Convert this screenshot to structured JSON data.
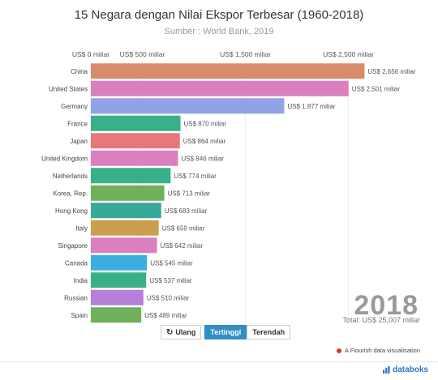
{
  "chart_data": {
    "type": "bar",
    "orientation": "horizontal",
    "title": "15 Negara dengan Nilai Ekspor Terbesar (1960-2018)",
    "subtitle": "Sumber : World Bank, 2019",
    "xlim": [
      0,
      2700
    ],
    "x_ticks": [
      {
        "value": 0,
        "label": "US$ 0 miliar"
      },
      {
        "value": 500,
        "label": "US$ 500 miliar"
      },
      {
        "value": 1500,
        "label": "US$ 1,500 miliar"
      },
      {
        "value": 2500,
        "label": "US$ 2,500 miliar"
      }
    ],
    "grid": true,
    "categories": [
      "China",
      "United States",
      "Germany",
      "France",
      "Japan",
      "United Kingdom",
      "Netherlands",
      "Korea, Rep.",
      "Hong Kong",
      "Italy",
      "Singapore",
      "Canada",
      "India",
      "Russian",
      "Spain"
    ],
    "values": [
      2656,
      2501,
      1877,
      870,
      864,
      846,
      774,
      713,
      683,
      659,
      642,
      545,
      537,
      510,
      489
    ],
    "value_labels": [
      "US$ 2,656 miliar",
      "US$ 2,501 miliar",
      "US$ 1,877 miliar",
      "US$ 870 miliar",
      "US$ 864 miliar",
      "US$ 846 miliar",
      "US$ 774 miliar",
      "US$ 713 miliar",
      "US$ 683 miliar",
      "US$ 659 miliar",
      "US$ 642 miliar",
      "US$ 545 miliar",
      "US$ 537 miliar",
      "US$ 510 miliar",
      "US$ 489 miliar"
    ],
    "colors": [
      "#d98c6a",
      "#dc7fbf",
      "#8fa3e6",
      "#38b08a",
      "#e8777d",
      "#dc7fbf",
      "#38b08a",
      "#6fb05a",
      "#38a89a",
      "#c9a04e",
      "#dc7fbf",
      "#3bb0e0",
      "#38b08a",
      "#b67fd9",
      "#6fb05a"
    ],
    "year": "2018",
    "total": "Total: US$ 25,007 miliar"
  },
  "controls": {
    "replay_label": "Ulang",
    "highest_label": "Tertinggi",
    "lowest_label": "Terendah"
  },
  "footer": {
    "flourish_label": "A Flourish data visualisation",
    "brand": "databoks"
  }
}
